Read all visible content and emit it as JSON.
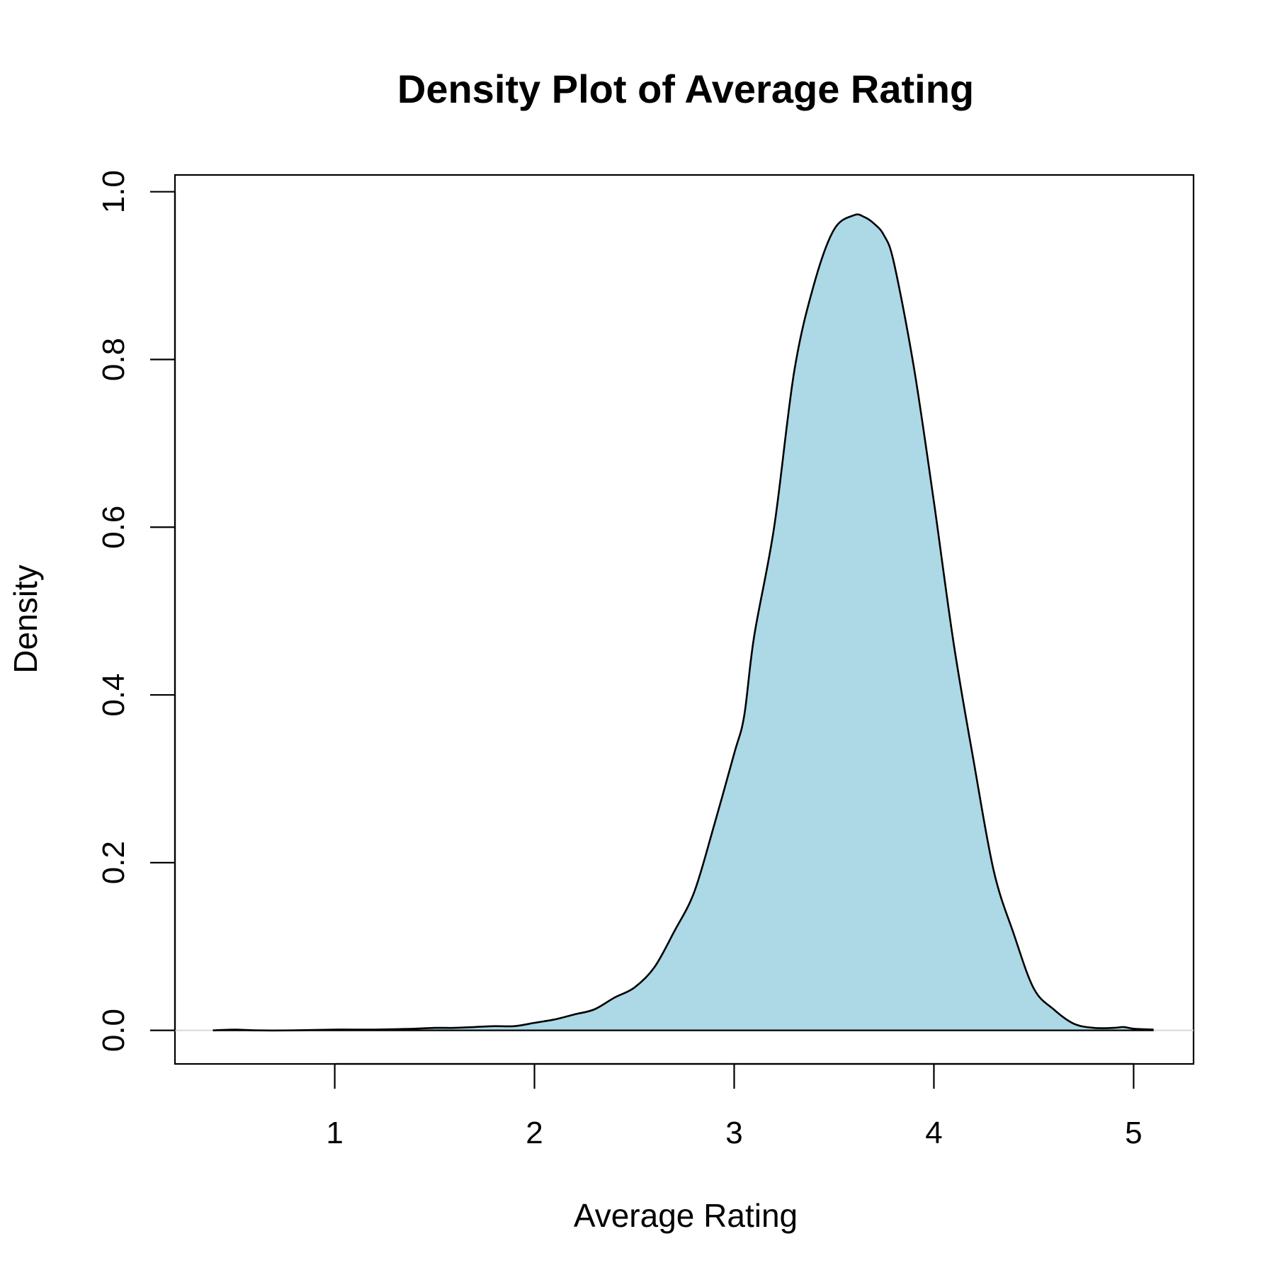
{
  "chart_data": {
    "type": "area",
    "title": "Density Plot of Average Rating",
    "xlabel": "Average Rating",
    "ylabel": "Density",
    "xlim": [
      0.2,
      5.3
    ],
    "ylim": [
      -0.04,
      1.02
    ],
    "xticks": [
      1,
      2,
      3,
      4,
      5
    ],
    "xtick_labels": [
      "1",
      "2",
      "3",
      "4",
      "5"
    ],
    "yticks": [
      0.0,
      0.2,
      0.4,
      0.6,
      0.8,
      1.0
    ],
    "ytick_labels": [
      "0.0",
      "0.2",
      "0.4",
      "0.6",
      "0.8",
      "1.0"
    ],
    "fill_color": "#add8e6",
    "line_color": "#000000",
    "grid": false,
    "series": [
      {
        "x": [
          0.39,
          0.5,
          0.6,
          0.8,
          1.0,
          1.2,
          1.4,
          1.5,
          1.6,
          1.7,
          1.8,
          1.9,
          2.0,
          2.1,
          2.2,
          2.3,
          2.4,
          2.5,
          2.6,
          2.7,
          2.8,
          2.9,
          3.0,
          3.05,
          3.1,
          3.2,
          3.3,
          3.4,
          3.5,
          3.6,
          3.65,
          3.7,
          3.75,
          3.8,
          3.9,
          4.0,
          4.1,
          4.2,
          4.3,
          4.4,
          4.5,
          4.6,
          4.7,
          4.8,
          4.9,
          4.95,
          5.0,
          5.1
        ],
        "y": [
          0.0,
          0.001,
          0.0,
          0.0,
          0.001,
          0.001,
          0.002,
          0.003,
          0.003,
          0.004,
          0.005,
          0.005,
          0.009,
          0.013,
          0.019,
          0.025,
          0.039,
          0.051,
          0.075,
          0.118,
          0.165,
          0.245,
          0.33,
          0.375,
          0.47,
          0.6,
          0.785,
          0.89,
          0.955,
          0.972,
          0.97,
          0.962,
          0.948,
          0.915,
          0.79,
          0.63,
          0.46,
          0.32,
          0.19,
          0.115,
          0.05,
          0.025,
          0.008,
          0.003,
          0.003,
          0.004,
          0.002,
          0.001
        ]
      }
    ]
  }
}
